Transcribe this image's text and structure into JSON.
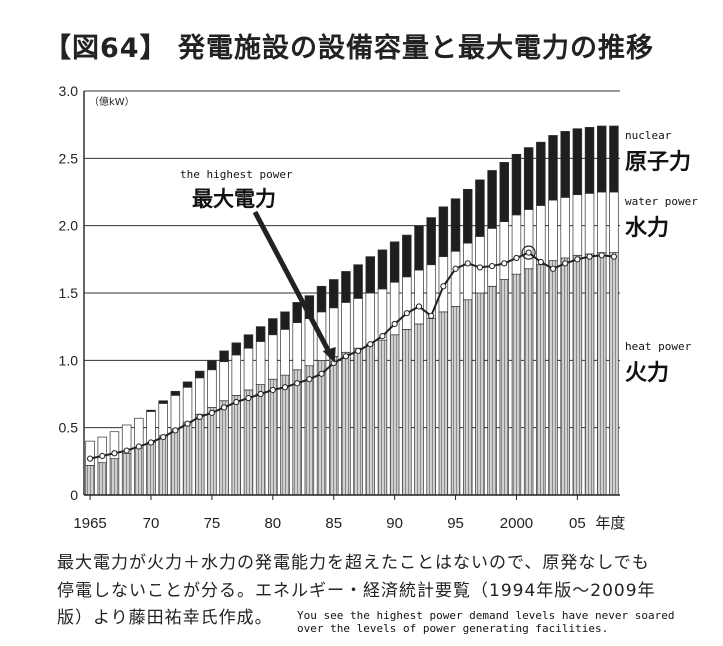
{
  "title": "【図64】 発電施設の設備容量と最大電力の推移",
  "chart_data": {
    "type": "bar",
    "unit_label": "（億kW）",
    "ylim": [
      0,
      3.0
    ],
    "yticks": [
      "0",
      "0.5",
      "1.0",
      "1.5",
      "2.0",
      "2.5",
      "3.0"
    ],
    "xticks": [
      "1965",
      "70",
      "75",
      "80",
      "85",
      "90",
      "95",
      "2000",
      "05"
    ],
    "x_unit": "年度",
    "years": [
      1965,
      1966,
      1967,
      1968,
      1969,
      1970,
      1971,
      1972,
      1973,
      1974,
      1975,
      1976,
      1977,
      1978,
      1979,
      1980,
      1981,
      1982,
      1983,
      1984,
      1985,
      1986,
      1987,
      1988,
      1989,
      1990,
      1991,
      1992,
      1993,
      1994,
      1995,
      1996,
      1997,
      1998,
      1999,
      2000,
      2001,
      2002,
      2003,
      2004,
      2005,
      2006,
      2007,
      2008
    ],
    "series": [
      {
        "name": "火力",
        "en": "heat power",
        "color": "#bdbdbd",
        "values": [
          0.22,
          0.24,
          0.27,
          0.31,
          0.35,
          0.39,
          0.44,
          0.49,
          0.54,
          0.6,
          0.65,
          0.7,
          0.74,
          0.78,
          0.82,
          0.86,
          0.89,
          0.93,
          0.96,
          1.0,
          1.03,
          1.06,
          1.09,
          1.12,
          1.15,
          1.19,
          1.23,
          1.27,
          1.31,
          1.36,
          1.4,
          1.45,
          1.5,
          1.55,
          1.6,
          1.64,
          1.68,
          1.71,
          1.74,
          1.76,
          1.78,
          1.79,
          1.8,
          1.8
        ]
      },
      {
        "name": "水力",
        "en": "water power",
        "color": "#ffffff",
        "values": [
          0.18,
          0.19,
          0.2,
          0.21,
          0.22,
          0.23,
          0.24,
          0.25,
          0.26,
          0.27,
          0.28,
          0.29,
          0.3,
          0.31,
          0.32,
          0.33,
          0.34,
          0.35,
          0.35,
          0.36,
          0.36,
          0.37,
          0.37,
          0.38,
          0.38,
          0.39,
          0.39,
          0.4,
          0.4,
          0.41,
          0.41,
          0.42,
          0.42,
          0.43,
          0.43,
          0.44,
          0.44,
          0.44,
          0.45,
          0.45,
          0.45,
          0.45,
          0.45,
          0.45
        ]
      },
      {
        "name": "原子力",
        "en": "nuclear",
        "color": "#1e1e1e",
        "values": [
          0.0,
          0.0,
          0.0,
          0.0,
          0.0,
          0.01,
          0.02,
          0.03,
          0.04,
          0.05,
          0.07,
          0.08,
          0.09,
          0.1,
          0.11,
          0.12,
          0.13,
          0.15,
          0.17,
          0.19,
          0.21,
          0.23,
          0.25,
          0.27,
          0.29,
          0.3,
          0.31,
          0.33,
          0.35,
          0.37,
          0.39,
          0.4,
          0.42,
          0.43,
          0.44,
          0.45,
          0.46,
          0.47,
          0.48,
          0.49,
          0.49,
          0.49,
          0.49,
          0.49
        ]
      },
      {
        "name": "最大電力",
        "en": "the highest power",
        "color": "#222222",
        "values": [
          0.27,
          0.29,
          0.31,
          0.33,
          0.36,
          0.39,
          0.43,
          0.48,
          0.53,
          0.58,
          0.61,
          0.65,
          0.69,
          0.72,
          0.75,
          0.78,
          0.8,
          0.83,
          0.86,
          0.9,
          0.98,
          1.03,
          1.07,
          1.12,
          1.18,
          1.27,
          1.35,
          1.4,
          1.33,
          1.55,
          1.68,
          1.72,
          1.69,
          1.7,
          1.72,
          1.76,
          1.8,
          1.73,
          1.68,
          1.72,
          1.75,
          1.77,
          1.78,
          1.77
        ]
      }
    ],
    "annotation_peak": "最大電力",
    "annotation_peak_en": "the highest power"
  },
  "caption_lines": [
    "最大電力が火力＋水力の発電能力を超えたことはないので、原発なしでも",
    "停電しないことが分る。エネルギー・経済統計要覧（1994年版～2009年",
    "版）より藤田祐幸氏作成。"
  ],
  "english_note": [
    "You see the highest power demand levels have never soared",
    "over the levels of power generating facilities."
  ]
}
